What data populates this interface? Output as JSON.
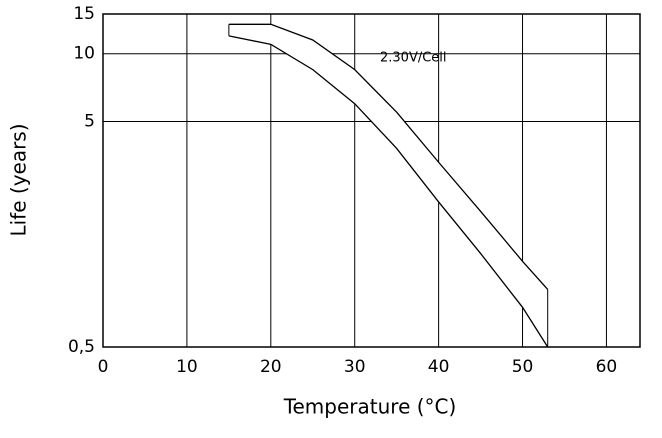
{
  "chart_data": {
    "type": "band",
    "xlabel": "Temperature (°C)",
    "ylabel": "Life (years)",
    "annotation": "2.30V/Cell",
    "x": [
      15,
      20,
      25,
      30,
      35,
      40,
      45,
      50,
      53
    ],
    "series": [
      {
        "name": "upper",
        "values": [
          13.5,
          13.5,
          11.5,
          8.5,
          5.5,
          3.3,
          2.0,
          1.2,
          0.9
        ]
      },
      {
        "name": "lower",
        "values": [
          12,
          11,
          8.5,
          6,
          3.8,
          2.2,
          1.3,
          0.75,
          0.5
        ]
      }
    ],
    "color": "#000000",
    "xlim": [
      0,
      64
    ],
    "xticks": [
      0,
      10,
      20,
      30,
      40,
      50,
      60
    ],
    "ylim": [
      0.5,
      15
    ],
    "yticks": [
      {
        "value": 0.5,
        "label": "0,5"
      },
      5,
      10,
      15
    ],
    "ylog": true,
    "grid": true
  }
}
